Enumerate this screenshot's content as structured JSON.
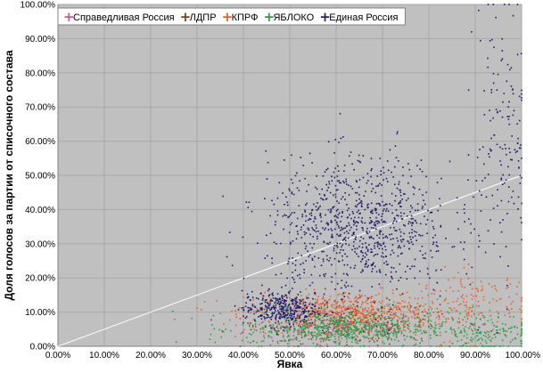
{
  "chart_data": {
    "type": "scatter",
    "xlabel": "Явка",
    "ylabel": "Доля голосов за партии от списочного состава",
    "xlim": [
      0,
      100
    ],
    "ylim": [
      0,
      100
    ],
    "x_ticks": [
      "0.00%",
      "10.00%",
      "20.00%",
      "30.00%",
      "40.00%",
      "50.00%",
      "60.00%",
      "70.00%",
      "80.00%",
      "90.00%",
      "100.00%"
    ],
    "y_ticks": [
      "0.00%",
      "10.00%",
      "20.00%",
      "30.00%",
      "40.00%",
      "50.00%",
      "60.00%",
      "70.00%",
      "80.00%",
      "90.00%",
      "100.00%"
    ],
    "grid": true,
    "legend_position": "top-left",
    "background_color": "#c0c0c0",
    "reference_line": {
      "x": [
        0,
        100
      ],
      "y": [
        0,
        50
      ],
      "color": "#ffffff"
    },
    "series": [
      {
        "name": "Справедливая Россия",
        "color": "#d94f9a",
        "marker": "plus",
        "clusters": [
          {
            "x": 60,
            "y": 5,
            "sx": 10,
            "sy": 2.5,
            "n": 200
          }
        ]
      },
      {
        "name": "ЛДПР",
        "color": "#8b3a1a",
        "marker": "plus",
        "clusters": [
          {
            "x": 62,
            "y": 7,
            "sx": 10,
            "sy": 3,
            "n": 250
          }
        ]
      },
      {
        "name": "КПРФ",
        "color": "#e8622c",
        "marker": "plus",
        "clusters": [
          {
            "x": 63,
            "y": 10,
            "sx": 11,
            "sy": 3,
            "n": 600
          },
          {
            "x": 90,
            "y": 12,
            "sx": 6,
            "sy": 5,
            "n": 150
          }
        ]
      },
      {
        "name": "ЯБЛОКО",
        "color": "#2e9e4a",
        "marker": "plus",
        "clusters": [
          {
            "x": 62,
            "y": 5,
            "sx": 11,
            "sy": 2.5,
            "n": 650
          },
          {
            "x": 92,
            "y": 4,
            "sx": 5,
            "sy": 3,
            "n": 150
          }
        ]
      },
      {
        "name": "Единая Россия",
        "color": "#1f1f6e",
        "marker": "plus",
        "clusters": [
          {
            "x": 48,
            "y": 11,
            "sx": 4,
            "sy": 2.5,
            "n": 350
          },
          {
            "x": 65,
            "y": 35,
            "sx": 10,
            "sy": 10,
            "n": 900
          },
          {
            "x": 96,
            "y": 60,
            "sx": 3,
            "sy": 20,
            "n": 150
          }
        ]
      }
    ]
  }
}
